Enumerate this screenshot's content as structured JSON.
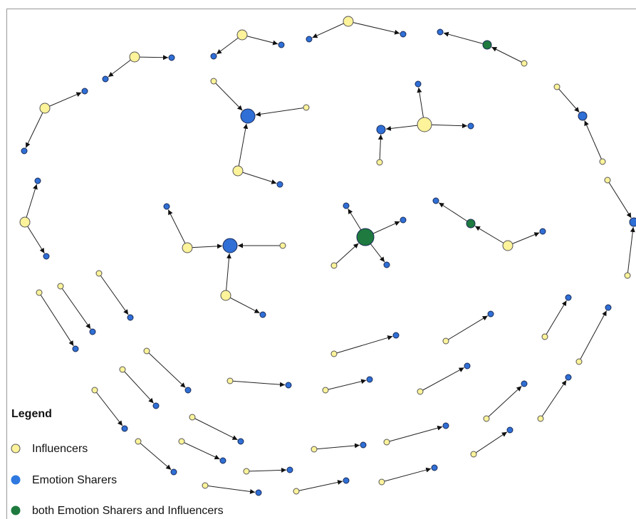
{
  "legend": {
    "title": "Legend",
    "items": [
      {
        "label": "Influencers"
      },
      {
        "label": "Emotion Sharers"
      },
      {
        "label": "both Emotion Sharers and Influencers"
      }
    ]
  }
}
